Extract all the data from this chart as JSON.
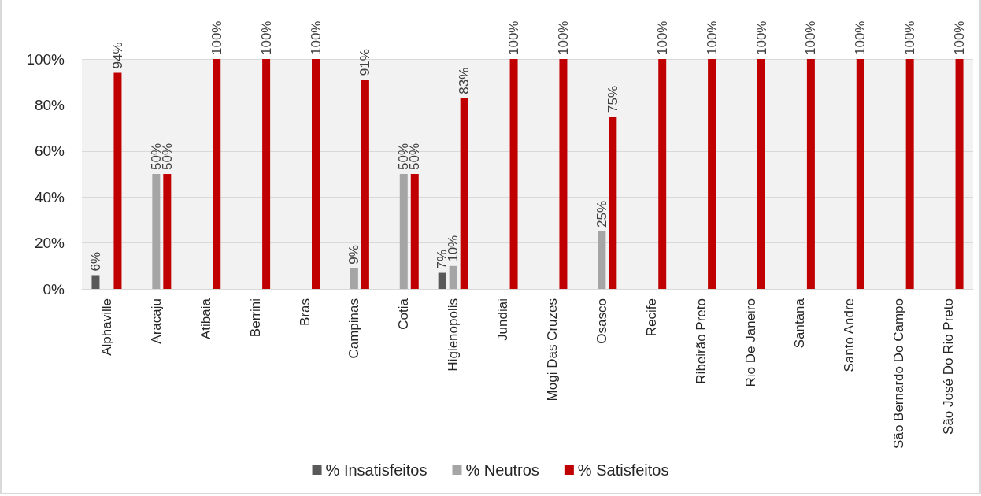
{
  "chart_data": {
    "type": "bar",
    "categories": [
      "Alphaville",
      "Aracaju",
      "Atibaia",
      "Berrini",
      "Bras",
      "Campinas",
      "Cotia",
      "Higienopolis",
      "Jundiai",
      "Mogi Das Cruzes",
      "Osasco",
      "Recife",
      "Ribeirão Preto",
      "Rio De Janeiro",
      "Santana",
      "Santo Andre",
      "São Bernardo Do Campo",
      "São José Do Rio Preto"
    ],
    "series": [
      {
        "name": "% Insatisfeitos",
        "color": "#595959",
        "values": [
          6,
          null,
          null,
          null,
          null,
          null,
          null,
          7,
          null,
          null,
          null,
          null,
          null,
          null,
          null,
          null,
          null,
          null
        ],
        "value_labels": [
          "6%",
          null,
          null,
          null,
          null,
          null,
          null,
          "7%",
          null,
          null,
          null,
          null,
          null,
          null,
          null,
          null,
          null,
          null
        ]
      },
      {
        "name": "% Neutros",
        "color": "#a5a5a5",
        "values": [
          null,
          50,
          null,
          null,
          null,
          9,
          50,
          10,
          null,
          null,
          25,
          null,
          null,
          null,
          null,
          null,
          null,
          null
        ],
        "value_labels": [
          null,
          "50%",
          null,
          null,
          null,
          "9%",
          "50%",
          "10%",
          null,
          null,
          "25%",
          null,
          null,
          null,
          null,
          null,
          null,
          null
        ]
      },
      {
        "name": "% Satisfeitos",
        "color": "#c00000",
        "values": [
          94,
          50,
          100,
          100,
          100,
          91,
          50,
          83,
          100,
          100,
          75,
          100,
          100,
          100,
          100,
          100,
          100,
          100
        ],
        "value_labels": [
          "94%",
          "50%",
          "100%",
          "100%",
          "100%",
          "91%",
          "50%",
          "83%",
          "100%",
          "100%",
          "75%",
          "100%",
          "100%",
          "100%",
          "100%",
          "100%",
          "100%",
          "100%"
        ]
      }
    ],
    "ylim": [
      0,
      100
    ],
    "yticks": [
      {
        "value": 0,
        "label": "0%"
      },
      {
        "value": 20,
        "label": "20%"
      },
      {
        "value": 40,
        "label": "40%"
      },
      {
        "value": 60,
        "label": "60%"
      },
      {
        "value": 80,
        "label": "80%"
      },
      {
        "value": 100,
        "label": "100%"
      }
    ],
    "grid": "y",
    "legend": "bottom"
  }
}
